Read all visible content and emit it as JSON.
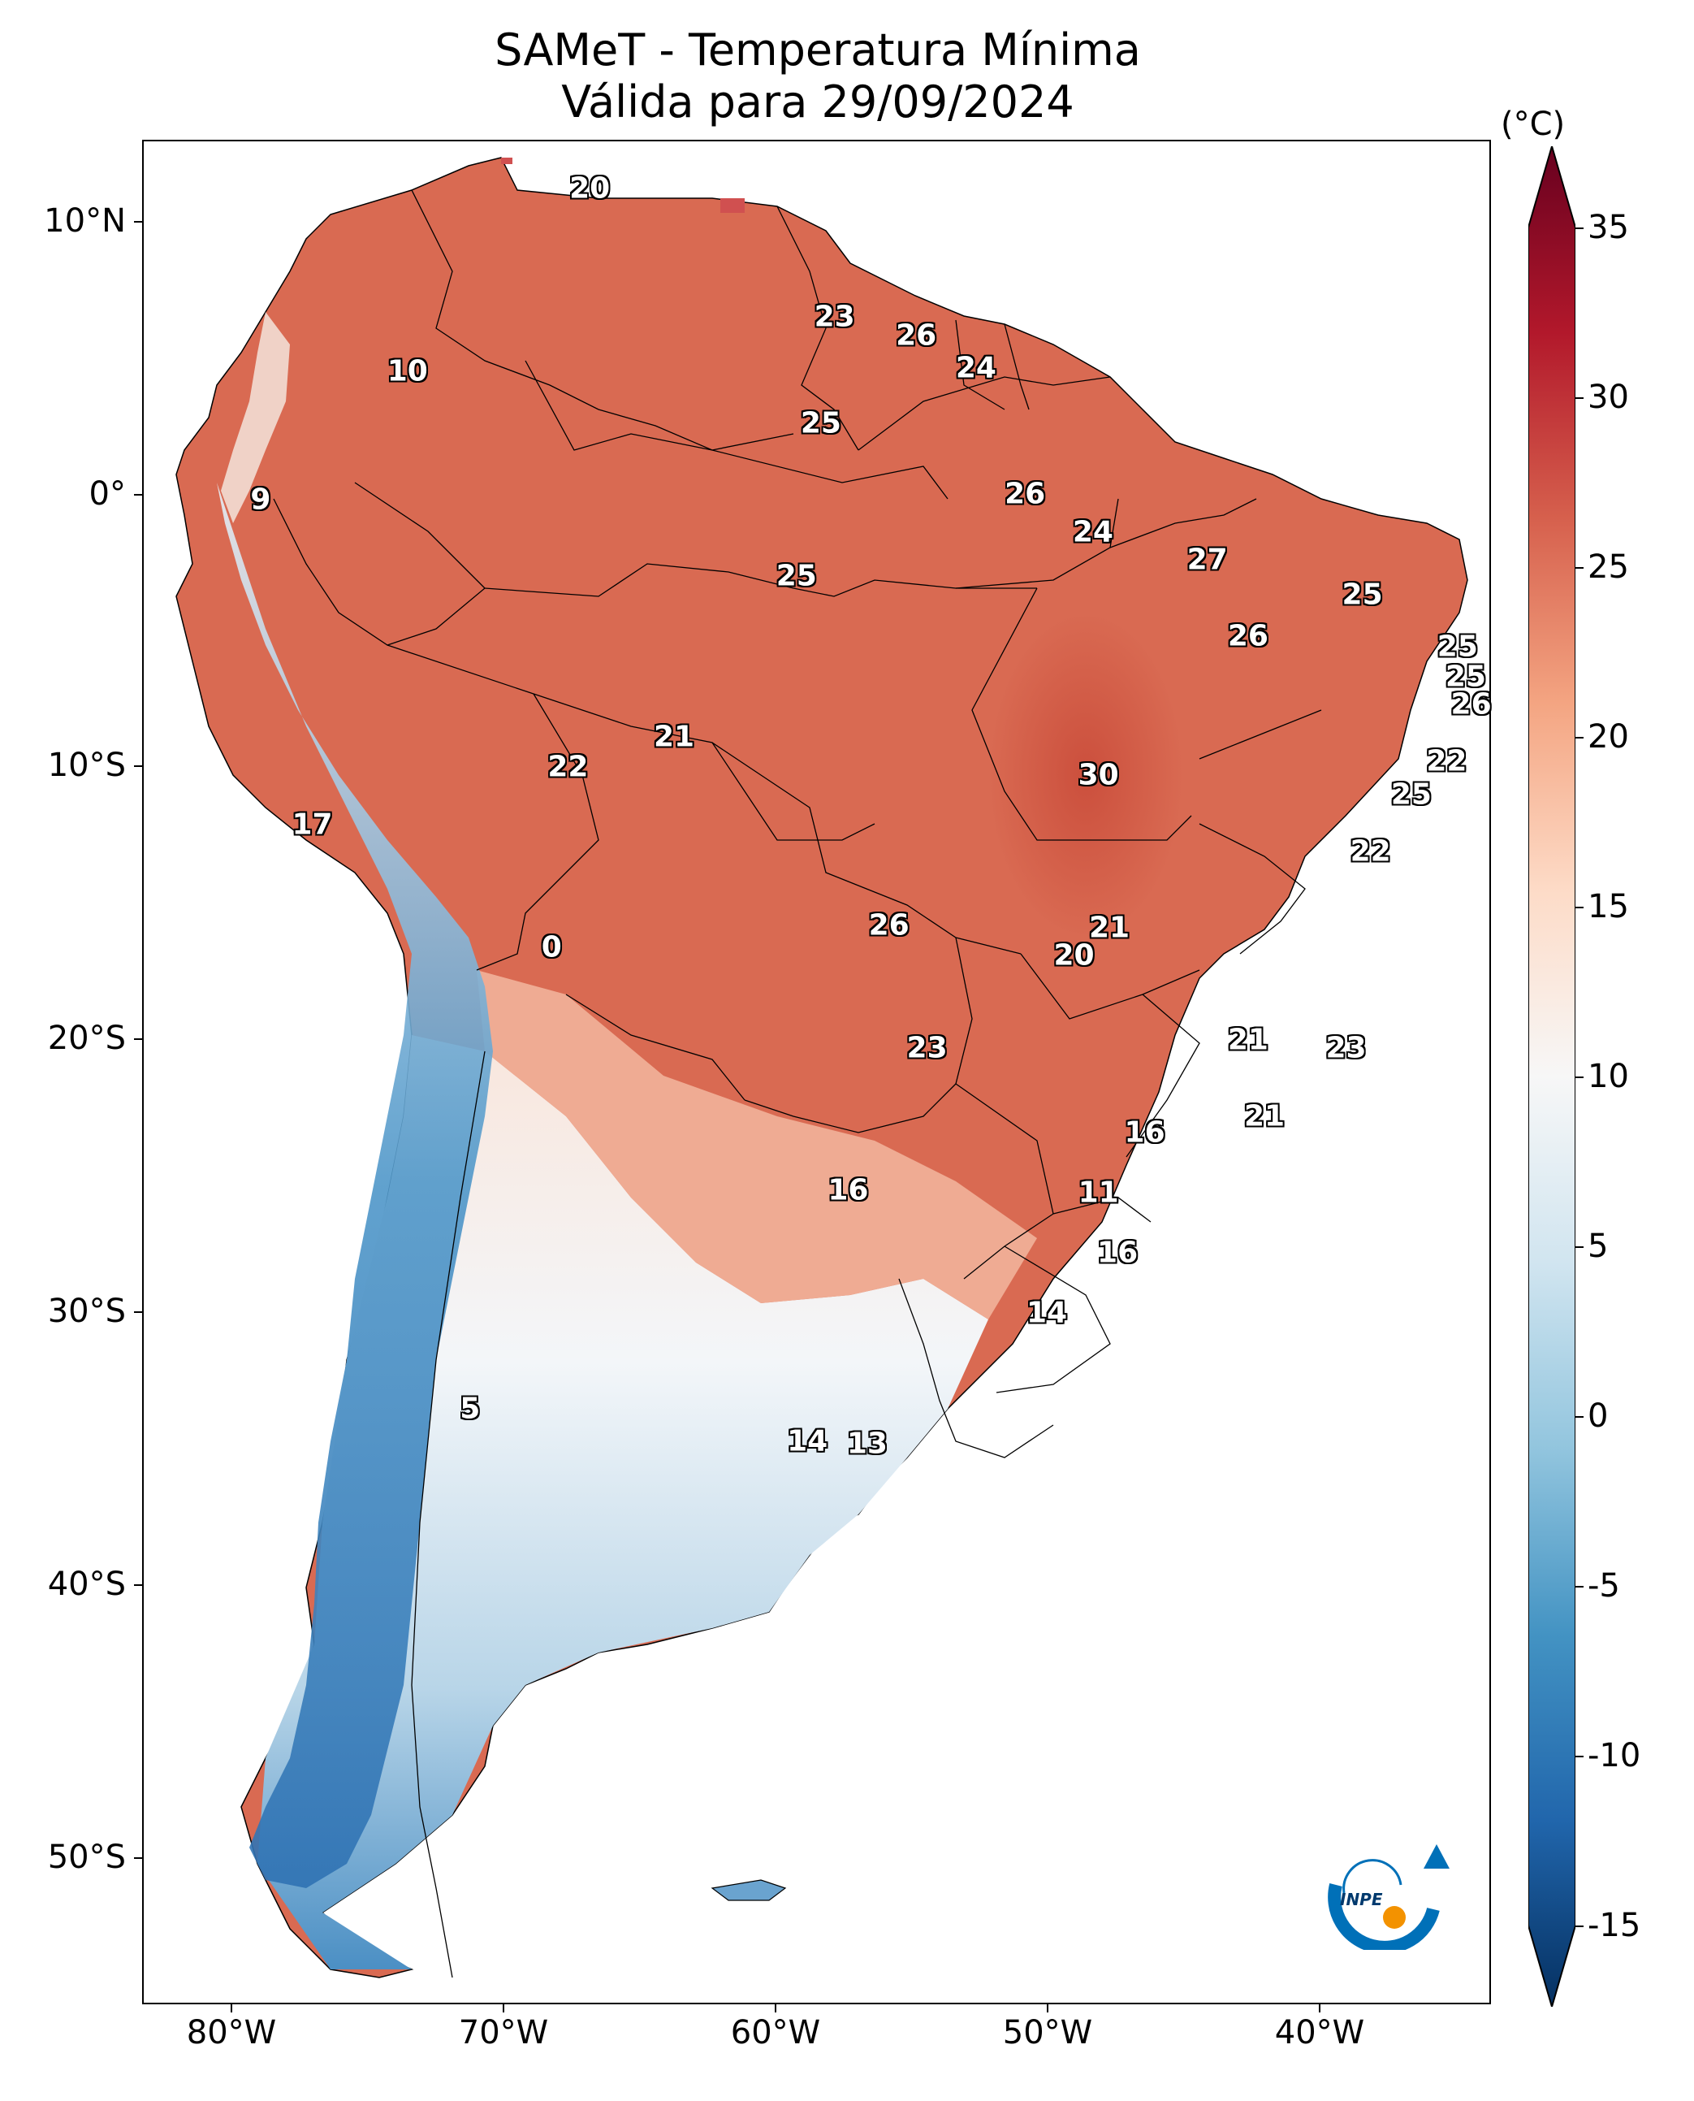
{
  "title": {
    "line1": "SAMeT - Temperatura Mínima",
    "line2": "Válida para 29/09/2024"
  },
  "map": {
    "latitude_labels": [
      "10°N",
      "0°",
      "10°S",
      "20°S",
      "30°S",
      "40°S",
      "50°S"
    ],
    "longitude_labels": [
      "80°W",
      "70°W",
      "60°W",
      "50°W",
      "40°W"
    ],
    "ocean_color": "#ffffff",
    "border_color": "#000000",
    "contour_labels": [
      {
        "text": "20",
        "lon": -66.8,
        "lat": 11.2
      },
      {
        "text": "10",
        "lon": -73.5,
        "lat": 4.5
      },
      {
        "text": "23",
        "lon": -57.8,
        "lat": 6.5
      },
      {
        "text": "26",
        "lon": -54.8,
        "lat": 5.8
      },
      {
        "text": "24",
        "lon": -52.6,
        "lat": 4.6
      },
      {
        "text": "25",
        "lon": -58.3,
        "lat": 2.6
      },
      {
        "text": "9",
        "lon": -78.9,
        "lat": -0.2
      },
      {
        "text": "26",
        "lon": -50.8,
        "lat": 0.0
      },
      {
        "text": "24",
        "lon": -48.3,
        "lat": -1.4
      },
      {
        "text": "25",
        "lon": -59.2,
        "lat": -3.0
      },
      {
        "text": "27",
        "lon": -44.1,
        "lat": -2.4
      },
      {
        "text": "25",
        "lon": -38.4,
        "lat": -3.7
      },
      {
        "text": "26",
        "lon": -42.6,
        "lat": -5.2
      },
      {
        "text": "25",
        "lon": -34.9,
        "lat": -5.6
      },
      {
        "text": "25",
        "lon": -34.6,
        "lat": -6.7
      },
      {
        "text": "26",
        "lon": -34.4,
        "lat": -7.7
      },
      {
        "text": "21",
        "lon": -63.7,
        "lat": -8.9
      },
      {
        "text": "22",
        "lon": -67.6,
        "lat": -10.0
      },
      {
        "text": "30",
        "lon": -48.1,
        "lat": -10.3
      },
      {
        "text": "22",
        "lon": -35.3,
        "lat": -9.8
      },
      {
        "text": "25",
        "lon": -36.6,
        "lat": -11.0
      },
      {
        "text": "17",
        "lon": -77.0,
        "lat": -12.1
      },
      {
        "text": "22",
        "lon": -38.1,
        "lat": -13.1
      },
      {
        "text": "26",
        "lon": -55.8,
        "lat": -15.8
      },
      {
        "text": "21",
        "lon": -47.7,
        "lat": -15.9
      },
      {
        "text": "0",
        "lon": -68.2,
        "lat": -16.6
      },
      {
        "text": "20",
        "lon": -49.0,
        "lat": -16.9
      },
      {
        "text": "23",
        "lon": -54.4,
        "lat": -20.3
      },
      {
        "text": "21",
        "lon": -42.6,
        "lat": -20.0
      },
      {
        "text": "23",
        "lon": -39.0,
        "lat": -20.3
      },
      {
        "text": "21",
        "lon": -42.0,
        "lat": -22.8
      },
      {
        "text": "16",
        "lon": -46.4,
        "lat": -23.4
      },
      {
        "text": "16",
        "lon": -57.3,
        "lat": -25.5
      },
      {
        "text": "11",
        "lon": -48.1,
        "lat": -25.6
      },
      {
        "text": "16",
        "lon": -47.4,
        "lat": -27.8
      },
      {
        "text": "14",
        "lon": -50.0,
        "lat": -30.0
      },
      {
        "text": "5",
        "lon": -71.2,
        "lat": -33.5
      },
      {
        "text": "14",
        "lon": -58.8,
        "lat": -34.7
      },
      {
        "text": "13",
        "lon": -56.6,
        "lat": -34.8
      }
    ]
  },
  "colorbar": {
    "unit": "(°C)",
    "min": -15,
    "max": 35,
    "tick_labels": [
      "35",
      "30",
      "25",
      "20",
      "15",
      "10",
      "5",
      "0",
      "-5",
      "-10",
      "-15"
    ],
    "colors": [
      "#053061",
      "#2166ac",
      "#4393c3",
      "#92c5de",
      "#d1e5f0",
      "#f7f7f7",
      "#fddbc7",
      "#f4a582",
      "#d6604d",
      "#b2182b",
      "#67001f"
    ]
  },
  "logo": {
    "text": "INPE",
    "accent": "#f39200",
    "primary": "#0070b8"
  }
}
